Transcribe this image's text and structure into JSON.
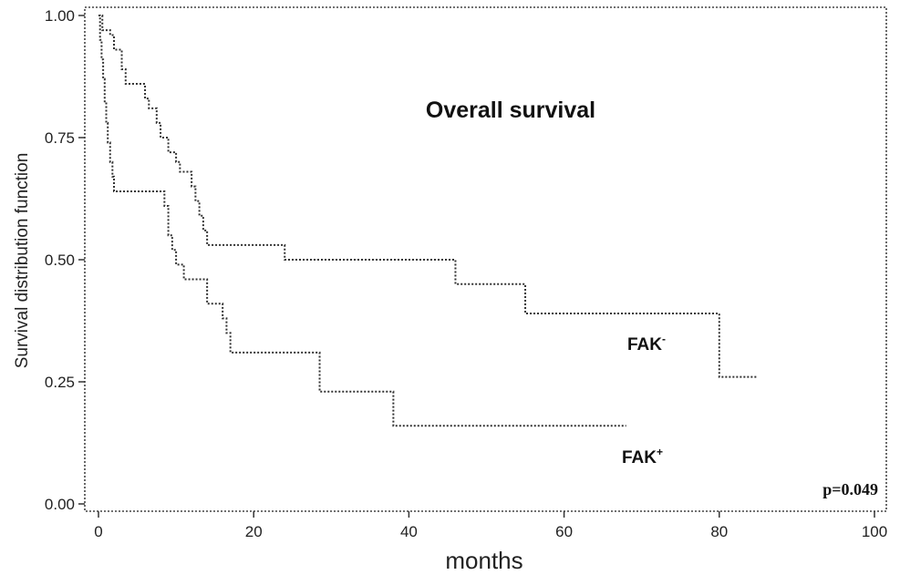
{
  "chart_data": {
    "type": "line",
    "step": true,
    "title": "Overall survival",
    "xlabel": "months",
    "ylabel": "Survival distribution function",
    "xlim": [
      0,
      100
    ],
    "ylim": [
      0,
      1
    ],
    "x_ticks": [
      0,
      20,
      40,
      60,
      80,
      100
    ],
    "y_ticks": [
      "0.00",
      "0.25",
      "0.50",
      "0.75",
      "1.00"
    ],
    "line_style": "dotted",
    "line_color": "#333333",
    "grid": false,
    "pvalue": "p=0.049",
    "series": [
      {
        "name": "FAK",
        "name_sup": "-",
        "points": [
          [
            0,
            1.0
          ],
          [
            0.5,
            0.97
          ],
          [
            1.5,
            0.96
          ],
          [
            2.0,
            0.93
          ],
          [
            3.0,
            0.89
          ],
          [
            3.5,
            0.86
          ],
          [
            6.0,
            0.83
          ],
          [
            6.5,
            0.81
          ],
          [
            7.5,
            0.78
          ],
          [
            8.0,
            0.75
          ],
          [
            9.0,
            0.72
          ],
          [
            10.0,
            0.7
          ],
          [
            10.5,
            0.68
          ],
          [
            12.0,
            0.65
          ],
          [
            12.5,
            0.62
          ],
          [
            13.0,
            0.59
          ],
          [
            13.5,
            0.56
          ],
          [
            14.0,
            0.53
          ],
          [
            24.0,
            0.5
          ],
          [
            46.0,
            0.45
          ],
          [
            55.0,
            0.39
          ],
          [
            80.0,
            0.26
          ],
          [
            85.0,
            0.26
          ]
        ]
      },
      {
        "name": "FAK",
        "name_sup": "+",
        "points": [
          [
            0,
            1.0
          ],
          [
            0.2,
            0.95
          ],
          [
            0.4,
            0.91
          ],
          [
            0.6,
            0.87
          ],
          [
            0.8,
            0.82
          ],
          [
            1.0,
            0.78
          ],
          [
            1.2,
            0.74
          ],
          [
            1.5,
            0.7
          ],
          [
            1.8,
            0.67
          ],
          [
            2.0,
            0.64
          ],
          [
            8.5,
            0.61
          ],
          [
            9.0,
            0.55
          ],
          [
            9.5,
            0.52
          ],
          [
            10.0,
            0.49
          ],
          [
            11.0,
            0.46
          ],
          [
            14.0,
            0.41
          ],
          [
            16.0,
            0.38
          ],
          [
            16.5,
            0.35
          ],
          [
            17.0,
            0.31
          ],
          [
            28.5,
            0.23
          ],
          [
            38.0,
            0.16
          ],
          [
            68.0,
            0.16
          ]
        ]
      }
    ]
  }
}
